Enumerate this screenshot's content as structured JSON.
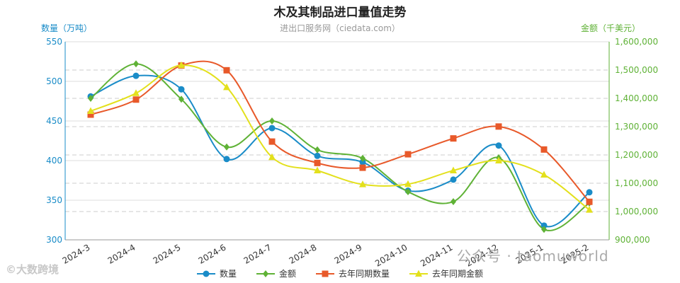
{
  "chart_data": {
    "type": "line",
    "title": "木及其制品进口量值走势",
    "subtitle": "进出口服务网（ciedata.com）",
    "ylabel_left": "数量（万吨）",
    "ylabel_right": "金额（千美元）",
    "categories": [
      "2024-3",
      "2024-4",
      "2024-5",
      "2024-6",
      "2024-7",
      "2024-8",
      "2024-9",
      "2024-10",
      "2024-11",
      "2024-12",
      "2025-1",
      "2025-2"
    ],
    "ylim_left": [
      300,
      550
    ],
    "yticks_left": [
      "550",
      "500",
      "450",
      "400",
      "350",
      "300"
    ],
    "ylim_right": [
      900000,
      1600000
    ],
    "yticks_right": [
      "1,600,000",
      "1,500,000",
      "1,400,000",
      "1,300,000",
      "1,200,000",
      "1,100,000",
      "1,000,000",
      "900,000"
    ],
    "grid": true,
    "legend_position": "bottom",
    "series": [
      {
        "name": "数量",
        "axis": "left",
        "marker": "circle",
        "color": "#1a8cc8",
        "values": [
          481,
          507,
          490,
          402,
          441,
          406,
          398,
          362,
          376,
          419,
          318,
          360
        ]
      },
      {
        "name": "金额",
        "axis": "right",
        "marker": "diamond",
        "color": "#5fb236",
        "values": [
          1400000,
          1522000,
          1397000,
          1228000,
          1320000,
          1218000,
          1188000,
          1070000,
          1035000,
          1190000,
          937000,
          1030000
        ]
      },
      {
        "name": "去年同期数量",
        "axis": "left",
        "marker": "square",
        "color": "#e8592a",
        "values": [
          458,
          477,
          520,
          514,
          424,
          397,
          391,
          408,
          428,
          443,
          414,
          348
        ]
      },
      {
        "name": "去年同期金额",
        "axis": "right",
        "marker": "triangle",
        "color": "#e3e01c",
        "values": [
          1355000,
          1418000,
          1517000,
          1439000,
          1192000,
          1145000,
          1096000,
          1097000,
          1145000,
          1180000,
          1130000,
          1006000
        ]
      }
    ]
  },
  "watermarks": {
    "left": "©大数跨境",
    "right": "公众号 · taomuworld"
  }
}
